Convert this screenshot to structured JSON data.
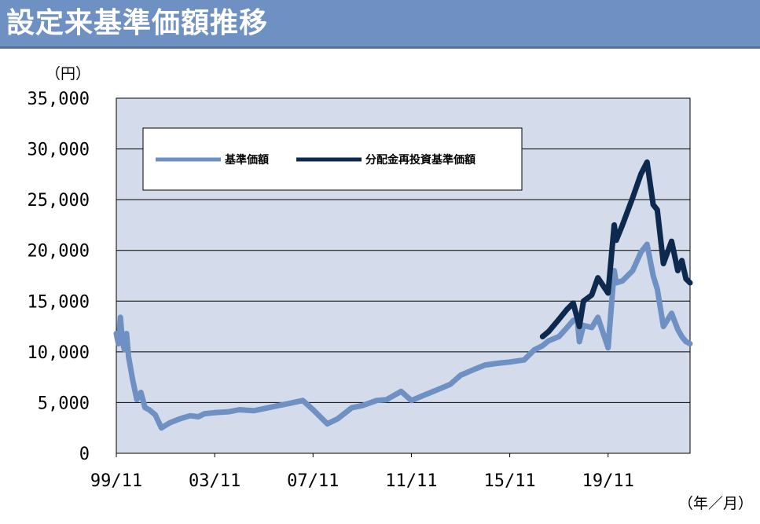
{
  "banner": {
    "title": "設定来基準価額推移"
  },
  "chart_data": {
    "type": "line",
    "y_unit_label": "（円）",
    "x_unit_label": "（年／月）",
    "x_ticks": [
      "99/11",
      "03/11",
      "07/11",
      "11/11",
      "15/11",
      "19/11"
    ],
    "y_ticks": [
      "0",
      "5,000",
      "10,000",
      "15,000",
      "20,000",
      "25,000",
      "30,000",
      "35,000"
    ],
    "ylim": [
      0,
      35000
    ],
    "xlim": [
      "1999-11",
      "2023-03"
    ],
    "grid": true,
    "legend": {
      "position": "top-left",
      "entries": [
        "基準価額",
        "分配金再投資基準価額"
      ]
    },
    "colors": {
      "nav": "#6f90c2",
      "reinvested": "#0d2a4e",
      "plot_bg": "#d4dceb",
      "banner": "#6f90c2"
    },
    "series": [
      {
        "name": "基準価額",
        "x": [
          "1999-11",
          "1999-12",
          "2000-01",
          "2000-02",
          "2000-03",
          "2000-04",
          "2000-05",
          "2000-07",
          "2000-09",
          "2000-11",
          "2001-01",
          "2001-03",
          "2001-06",
          "2001-09",
          "2002-01",
          "2002-06",
          "2002-11",
          "2003-03",
          "2003-06",
          "2003-11",
          "2004-06",
          "2004-11",
          "2005-06",
          "2005-11",
          "2006-06",
          "2006-11",
          "2007-06",
          "2007-11",
          "2008-06",
          "2008-11",
          "2009-06",
          "2009-11",
          "2010-06",
          "2010-11",
          "2011-06",
          "2011-11",
          "2012-06",
          "2012-11",
          "2013-06",
          "2013-11",
          "2014-06",
          "2014-11",
          "2015-06",
          "2015-11",
          "2016-06",
          "2016-11",
          "2017-03",
          "2017-06",
          "2017-11",
          "2018-03",
          "2018-06",
          "2018-08",
          "2018-09",
          "2018-11",
          "2019-03",
          "2019-06",
          "2019-11",
          "2020-02",
          "2020-03",
          "2020-06",
          "2020-11",
          "2021-03",
          "2021-06",
          "2021-09",
          "2021-11",
          "2022-02",
          "2022-06",
          "2022-09",
          "2022-11",
          "2023-01",
          "2023-03"
        ],
        "values": [
          11800,
          10800,
          13400,
          11000,
          10200,
          11800,
          9500,
          7200,
          5300,
          6000,
          4500,
          4300,
          3800,
          2500,
          3000,
          3400,
          3700,
          3600,
          3900,
          4000,
          4100,
          4300,
          4200,
          4400,
          4700,
          4900,
          5200,
          4300,
          2900,
          3400,
          4500,
          4700,
          5200,
          5300,
          6100,
          5200,
          5800,
          6200,
          6800,
          7700,
          8300,
          8700,
          8900,
          9000,
          9200,
          10200,
          10600,
          11100,
          11500,
          12400,
          13100,
          13100,
          11000,
          12600,
          12400,
          13400,
          10400,
          18000,
          16800,
          17000,
          18000,
          19800,
          20600,
          17500,
          16200,
          12500,
          13800,
          12200,
          11500,
          11000,
          10800
        ]
      },
      {
        "name": "分配金再投資基準価額",
        "x": [
          "2017-03",
          "2017-06",
          "2017-11",
          "2018-03",
          "2018-06",
          "2018-09",
          "2018-11",
          "2019-03",
          "2019-06",
          "2019-11",
          "2020-02",
          "2020-03",
          "2020-06",
          "2020-11",
          "2021-03",
          "2021-06",
          "2021-09",
          "2021-11",
          "2022-02",
          "2022-06",
          "2022-09",
          "2022-11",
          "2023-01",
          "2023-03"
        ],
        "values": [
          11500,
          12000,
          13200,
          14200,
          14800,
          12500,
          15000,
          15600,
          17300,
          15800,
          22500,
          21000,
          22500,
          25200,
          27500,
          28700,
          24500,
          24000,
          18700,
          20900,
          18000,
          19000,
          17200,
          16800
        ]
      }
    ]
  }
}
